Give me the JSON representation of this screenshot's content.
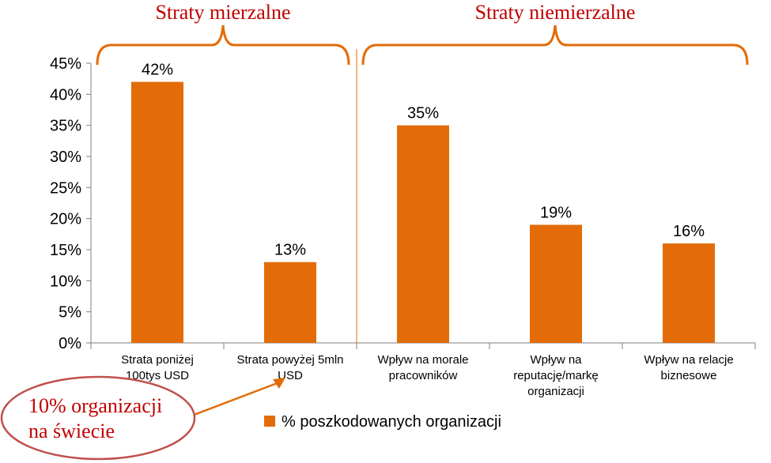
{
  "chart_data": {
    "type": "bar",
    "categories": [
      [
        "Strata poniżej",
        "100tys USD"
      ],
      [
        "Strata powyżej 5mln",
        "USD"
      ],
      [
        "Wpływ na morale",
        "pracowników"
      ],
      [
        "Wpływ na",
        "reputację/markę",
        "organizacji"
      ],
      [
        "Wpływ na relacje",
        "biznesowe"
      ]
    ],
    "series": [
      {
        "name": "% poszkodowanych organizacji",
        "values": [
          42,
          13,
          35,
          19,
          16
        ]
      }
    ],
    "value_labels": [
      "42%",
      "13%",
      "35%",
      "19%",
      "16%"
    ],
    "ylim": [
      0,
      45
    ],
    "yticks": [
      "0%",
      "5%",
      "10%",
      "15%",
      "20%",
      "25%",
      "30%",
      "35%",
      "40%",
      "45%"
    ],
    "grid": false,
    "legend": "bottom",
    "groups": [
      {
        "label": "Straty mierzalne",
        "categories": [
          0,
          1
        ]
      },
      {
        "label": "Straty niemierzalne",
        "categories": [
          2,
          3,
          4
        ]
      }
    ],
    "annotation": {
      "lines": [
        "10% organizacji",
        "na świecie"
      ],
      "points_to": 1
    }
  },
  "colors": {
    "bar": "#e36c09",
    "accent": "#c00000",
    "ellipse": "#c0504d",
    "axis": "#7f7f7f",
    "text": "#000000"
  }
}
